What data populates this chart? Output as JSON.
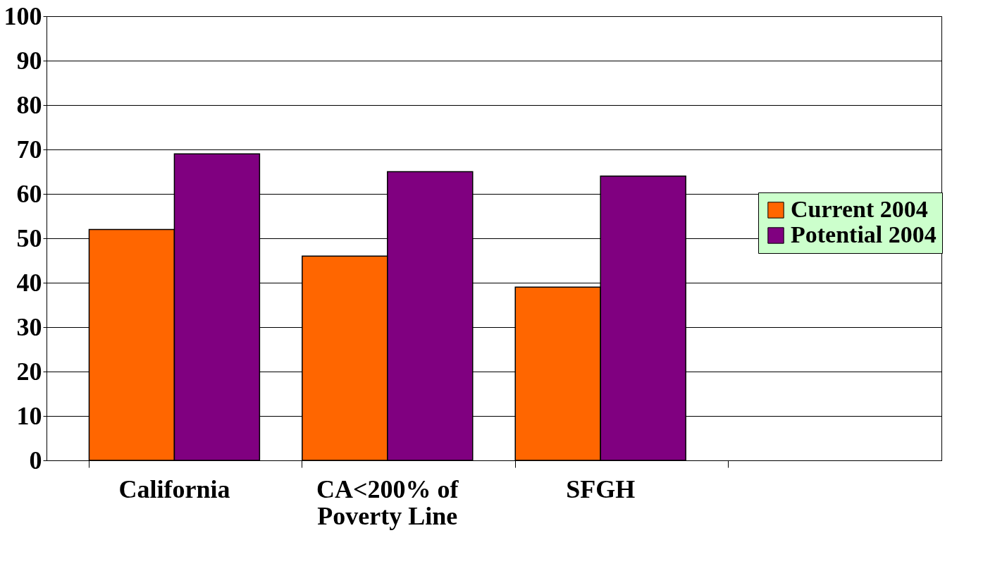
{
  "chart_data": {
    "type": "bar",
    "categories": [
      "California",
      "CA<200% of Poverty Line",
      "SFGH",
      null
    ],
    "series": [
      {
        "name": "Current 2004",
        "color": "#ff6600",
        "values": [
          52,
          46,
          39,
          null
        ]
      },
      {
        "name": "Potential 2004",
        "color": "#800080",
        "values": [
          69,
          65,
          64,
          null
        ]
      }
    ],
    "ylim": [
      0,
      100
    ],
    "yticks": [
      0,
      10,
      20,
      30,
      40,
      50,
      60,
      70,
      80,
      90,
      100
    ],
    "grid": "y",
    "legend": "right"
  }
}
